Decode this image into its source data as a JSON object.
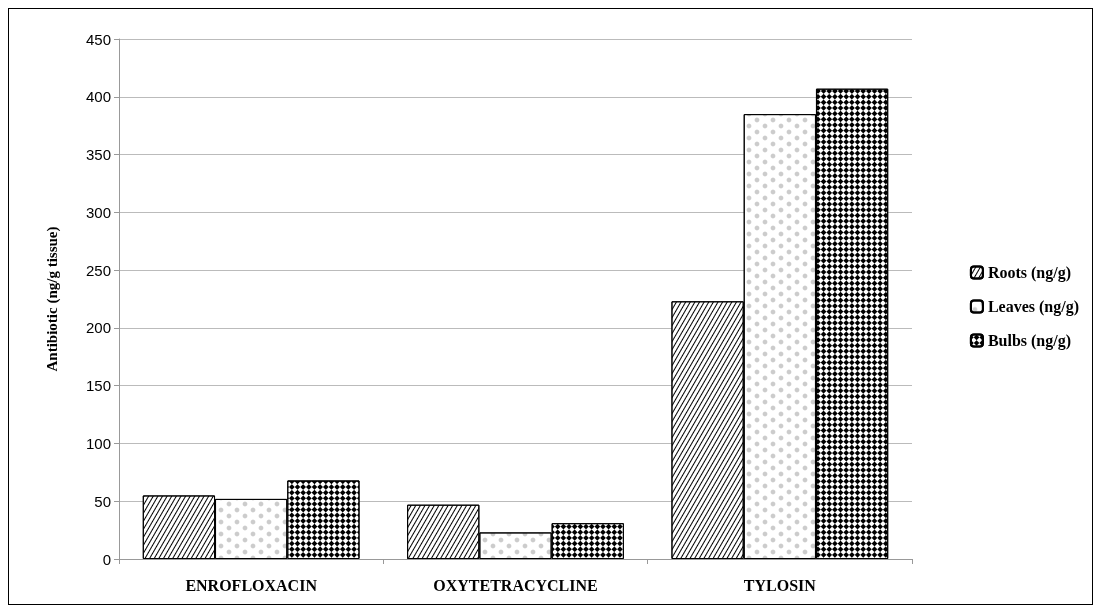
{
  "chart_data": {
    "type": "bar",
    "ylabel": "Antibiotic (ng/g tissue)",
    "categories": [
      "ENROFLOXACIN",
      "OXYTETRACYCLINE",
      "TYLOSIN"
    ],
    "series": [
      {
        "name": "Roots (ng/g)",
        "color": "#ffffff",
        "values": [
          55,
          47,
          223
        ]
      },
      {
        "name": "Leaves (ng/g)",
        "color": "#ffffff",
        "values": [
          52,
          23,
          385
        ]
      },
      {
        "name": "Bulbs (ng/g)",
        "color": "#ffffff",
        "values": [
          68,
          31,
          407
        ]
      }
    ],
    "ylim": [
      0,
      450
    ],
    "yticks": [
      0,
      50,
      100,
      150,
      200,
      250,
      300,
      350,
      400,
      450
    ],
    "grid": "y",
    "legend": "right"
  }
}
